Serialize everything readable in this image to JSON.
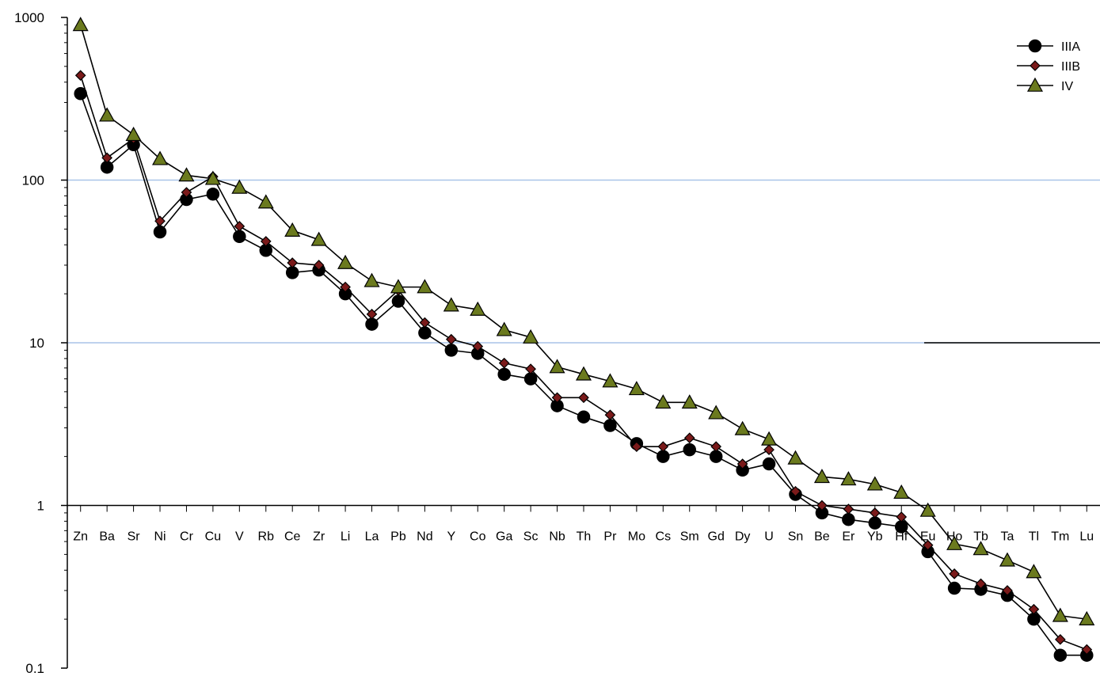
{
  "chart_data": {
    "type": "line",
    "title": "",
    "xlabel": "",
    "ylabel": "",
    "y_scale": "log",
    "ylim": [
      0.1,
      1000
    ],
    "y_ticks": [
      "0.1",
      "1",
      "10",
      "100",
      "1000"
    ],
    "grid": "horizontal major lines at 10 and 100",
    "legend_position": "top-right",
    "categories": [
      "Zn",
      "Ba",
      "Sr",
      "Ni",
      "Cr",
      "Cu",
      "V",
      "Rb",
      "Ce",
      "Zr",
      "Li",
      "La",
      "Pb",
      "Nd",
      "Y",
      "Co",
      "Ga",
      "Sc",
      "Nb",
      "Th",
      "Pr",
      "Mo",
      "Cs",
      "Sm",
      "Gd",
      "Dy",
      "U",
      "Sn",
      "Be",
      "Er",
      "Yb",
      "Hf",
      "Eu",
      "Ho",
      "Tb",
      "Ta",
      "Tl",
      "Tm",
      "Lu"
    ],
    "series": [
      {
        "name": "IIIA",
        "marker": "circle",
        "values": [
          340,
          120,
          165,
          48,
          76,
          82,
          45,
          37,
          27,
          28,
          20,
          13,
          18,
          11.5,
          9,
          8.6,
          6.4,
          6,
          4.1,
          3.5,
          3.1,
          2.4,
          2,
          2.2,
          2,
          1.65,
          1.8,
          1.17,
          0.9,
          0.82,
          0.78,
          0.74,
          0.52,
          0.31,
          0.305,
          0.28,
          0.2,
          0.12,
          0.12
        ]
      },
      {
        "name": "IIIB",
        "marker": "diamond",
        "values": [
          440,
          137,
          180,
          56,
          84,
          105,
          52,
          42,
          31,
          30,
          22,
          15,
          21,
          13.3,
          10.5,
          9.5,
          7.5,
          6.9,
          4.6,
          4.6,
          3.6,
          2.3,
          2.3,
          2.6,
          2.3,
          1.8,
          2.2,
          1.22,
          1,
          0.95,
          0.9,
          0.85,
          0.57,
          0.38,
          0.33,
          0.3,
          0.23,
          0.15,
          0.13
        ]
      },
      {
        "name": "IV",
        "marker": "triangle",
        "values": [
          900,
          250,
          190,
          135,
          107,
          102,
          90,
          73,
          49,
          43,
          31,
          24,
          22,
          22,
          17,
          16,
          12,
          10.8,
          7.1,
          6.4,
          5.8,
          5.2,
          4.3,
          4.3,
          3.7,
          2.95,
          2.55,
          1.95,
          1.5,
          1.45,
          1.35,
          1.2,
          0.93,
          0.58,
          0.54,
          0.46,
          0.39,
          0.21,
          0.2
        ]
      }
    ],
    "colors": {
      "IIIA": {
        "fill": "#000000",
        "stroke": "#000000"
      },
      "IIIB": {
        "fill": "#7a1a1a",
        "stroke": "#000000"
      },
      "IV": {
        "fill": "#6b7a1e",
        "stroke": "#000000"
      },
      "gridline": "#a9c4e8",
      "axis": "#000000"
    }
  }
}
